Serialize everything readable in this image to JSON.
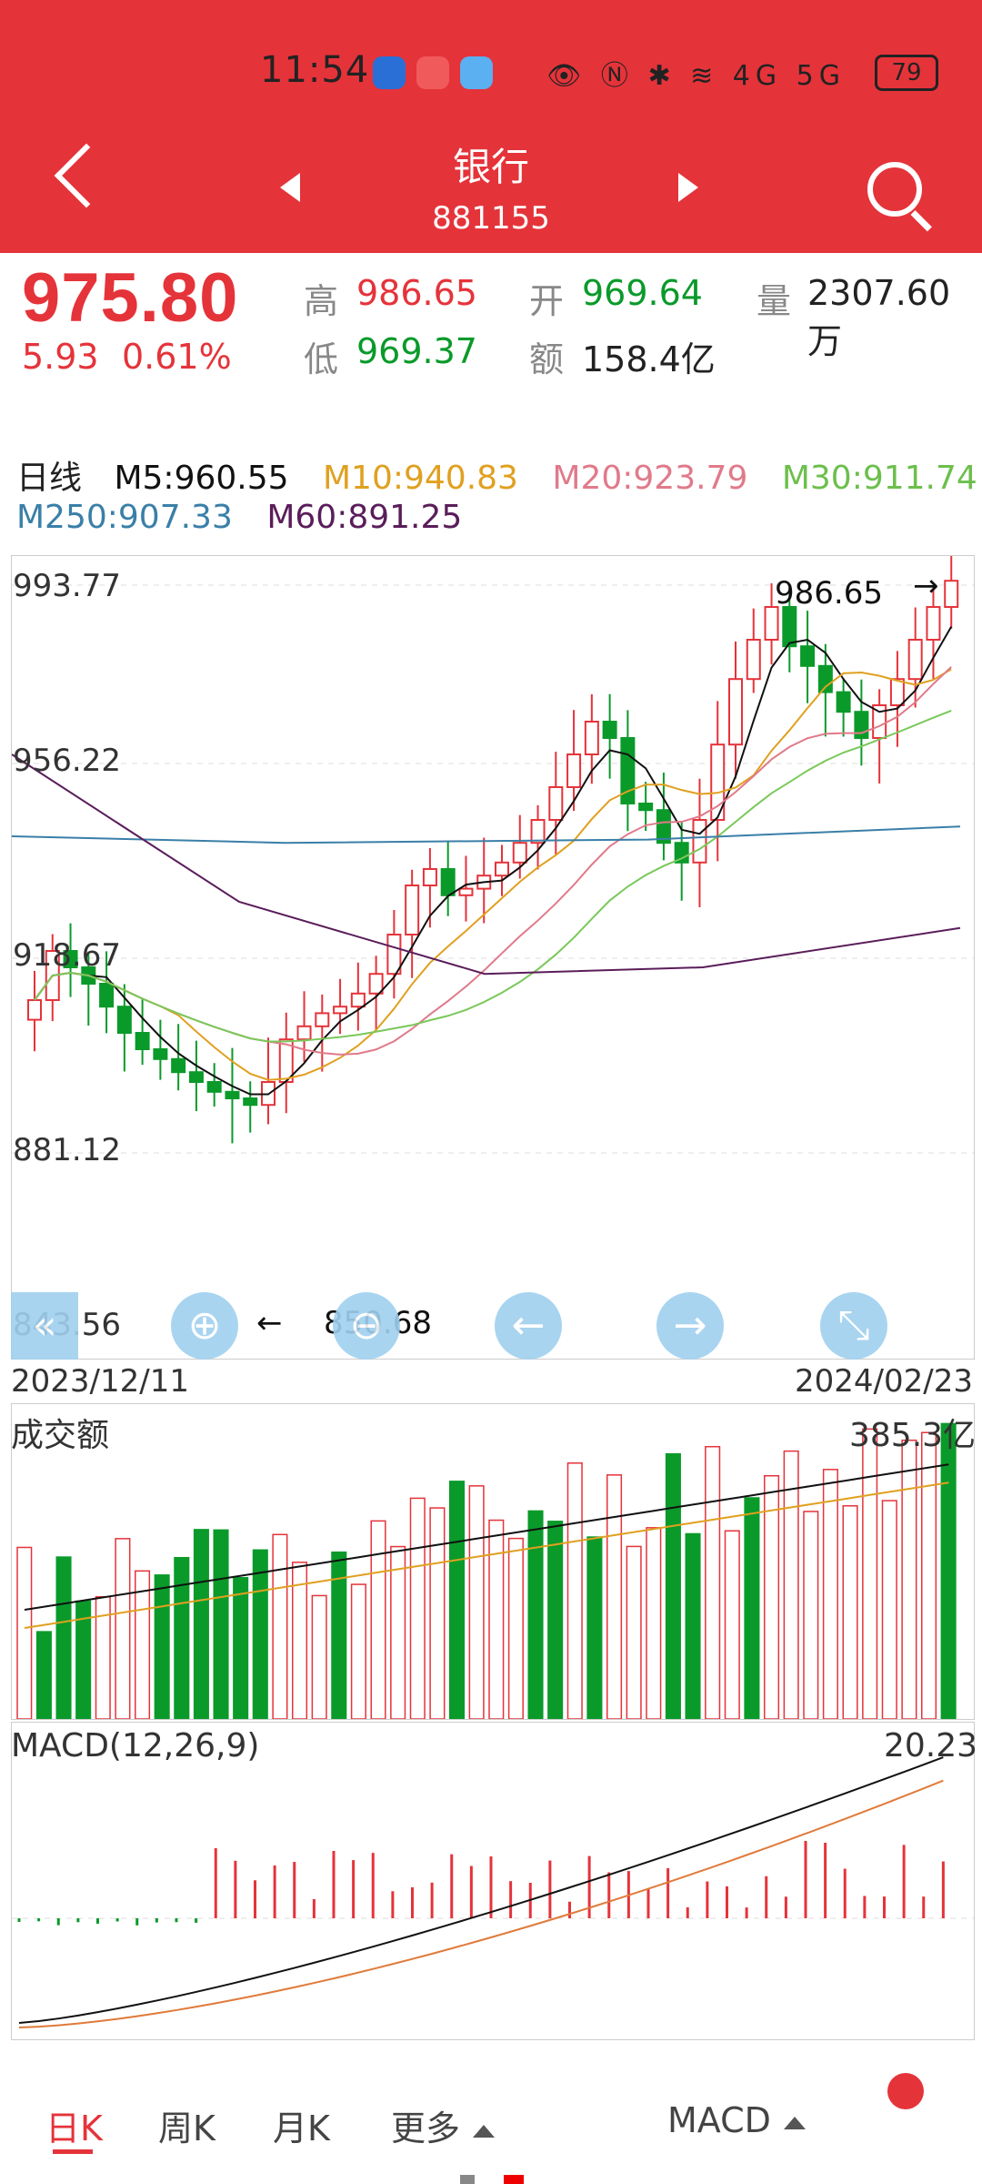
{
  "status_bar": {
    "time": "11:54",
    "icons": "👁 Ⓝ ✱ ≋ 4G 5G",
    "battery": "79"
  },
  "header": {
    "title": "银行",
    "code": "881155"
  },
  "quote": {
    "price": "975.80",
    "change": "5.93",
    "change_pct": "0.61%",
    "high_label": "高",
    "high": "986.65",
    "low_label": "低",
    "low": "969.37",
    "open_label": "开",
    "open": "969.64",
    "amount_label": "额",
    "amount": "158.4亿",
    "volume_label": "量",
    "volume": "2307.60万"
  },
  "ma_legend": {
    "period": "日线",
    "m5": "M5:960.55",
    "m10": "M10:940.83",
    "m20": "M20:923.79",
    "m30": "M30:911.74",
    "m250": "M250:907.33",
    "m60": "M60:891.25"
  },
  "colors": {
    "up": "#e5333a",
    "down": "#0a9a2a",
    "m5": "#111111",
    "m10": "#e0a020",
    "m20": "#e07a8a",
    "m30": "#7ac85a",
    "m250": "#3a7fa8",
    "m60": "#5a1d5a"
  },
  "kline": {
    "y_labels": [
      "993.77",
      "956.22",
      "918.67",
      "881.12",
      "843.56"
    ],
    "max_label": "986.65",
    "min_label": "850.68",
    "start_date": "2023/12/11",
    "end_date": "2024/02/23"
  },
  "volume_panel": {
    "title": "成交额",
    "max_label": "385.3亿"
  },
  "macd_panel": {
    "title": "MACD(12,26,9)",
    "max_label": "20.23"
  },
  "bottom_tabs": {
    "day": "日K",
    "week": "周K",
    "month": "月K",
    "more": "更多",
    "indicator": "MACD"
  }
}
